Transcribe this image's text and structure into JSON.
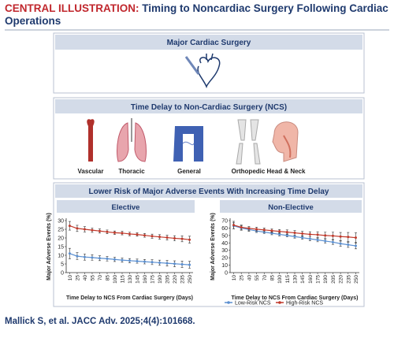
{
  "header": {
    "label": "CENTRAL ILLUSTRATION:",
    "title": "Timing to Noncardiac Surgery Following Cardiac Operations"
  },
  "panels": [
    {
      "title": "Major Cardiac Surgery"
    },
    {
      "title": "Time Delay to Non-Cardiac Surgery (NCS)",
      "items": [
        "Vascular",
        "Thoracic",
        "General",
        "Orthopedic",
        "Head & Neck"
      ]
    },
    {
      "title": "Lower Risk of Major Adverse Events With Increasing Time Delay"
    }
  ],
  "chart_data": [
    {
      "type": "line",
      "title": "Elective",
      "x_label": "Time Delay to NCS From Cardiac Surgery (Days)",
      "y_label": "Major Adverse Events (%)",
      "x": [
        10,
        25,
        40,
        55,
        70,
        85,
        100,
        115,
        130,
        145,
        160,
        175,
        190,
        205,
        220,
        235,
        250
      ],
      "xlim": [
        3,
        257
      ],
      "xticks": [
        10,
        25,
        40,
        55,
        70,
        85,
        100,
        115,
        130,
        145,
        160,
        175,
        190,
        205,
        220,
        235,
        250
      ],
      "ylim": [
        0,
        30
      ],
      "yticks": [
        0,
        5,
        10,
        15,
        20,
        25,
        30
      ],
      "series": [
        {
          "name": "Low-Risk NCS",
          "color": "#5b8fd0",
          "values": [
            11,
            9.5,
            9,
            8.7,
            8.3,
            8,
            7.6,
            7.2,
            6.9,
            6.6,
            6.3,
            6,
            5.7,
            5.4,
            5.1,
            4.8,
            4.5
          ],
          "errors": [
            3,
            2,
            1.8,
            1.6,
            1.4,
            1.3,
            1.2,
            1.2,
            1.2,
            1.2,
            1.3,
            1.4,
            1.5,
            1.6,
            1.7,
            1.8,
            2
          ]
        },
        {
          "name": "High-Risk NCS",
          "color": "#c0392b",
          "values": [
            27,
            25.5,
            25,
            24.5,
            24,
            23.5,
            23,
            22.8,
            22.3,
            22,
            21.5,
            21,
            20.6,
            20.2,
            19.8,
            19.5,
            19
          ],
          "errors": [
            2.5,
            1.8,
            1.5,
            1.3,
            1.2,
            1.1,
            1,
            1,
            1,
            1,
            1.1,
            1.2,
            1.3,
            1.4,
            1.5,
            1.7,
            2
          ]
        }
      ]
    },
    {
      "type": "line",
      "title": "Non-Elective",
      "x_label": "Time Delay to NCS From Cardiac Surgery (Days)",
      "y_label": "Major Adverse Events (%)",
      "x": [
        10,
        25,
        40,
        55,
        70,
        85,
        100,
        115,
        130,
        145,
        160,
        175,
        190,
        205,
        220,
        235,
        250
      ],
      "xlim": [
        3,
        257
      ],
      "xticks": [
        10,
        25,
        40,
        55,
        70,
        85,
        100,
        115,
        130,
        145,
        160,
        175,
        190,
        205,
        220,
        235,
        250
      ],
      "ylim": [
        0,
        70
      ],
      "yticks": [
        0,
        10,
        20,
        30,
        40,
        50,
        60,
        70
      ],
      "series": [
        {
          "color": "#5b8fd0",
          "values": [
            63,
            60,
            58,
            56,
            54.5,
            53,
            51.5,
            50,
            48.5,
            47,
            45.5,
            44,
            42.5,
            41,
            39,
            37.5,
            36
          ],
          "errors": [
            4,
            3,
            2.5,
            2,
            2,
            2,
            2,
            2,
            2,
            2,
            2.5,
            2.5,
            3,
            3,
            3.5,
            3.5,
            4
          ]
        },
        {
          "color": "#c0392b",
          "values": [
            64,
            61,
            59.5,
            58.5,
            57.5,
            56.5,
            55.5,
            54.5,
            53.5,
            52.5,
            51.5,
            51,
            50,
            49.5,
            48.5,
            48,
            47
          ],
          "errors": [
            5,
            3,
            2.5,
            2.5,
            2.5,
            2.5,
            2.5,
            3,
            3,
            3,
            3.5,
            4,
            4.5,
            5,
            5.5,
            6,
            6.5
          ]
        }
      ]
    }
  ],
  "citation": "Mallick S, et al. JACC Adv. 2025;4(4):101668."
}
